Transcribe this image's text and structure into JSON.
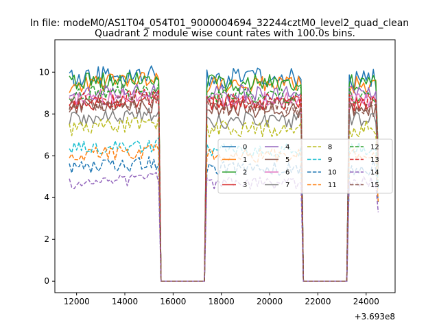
{
  "chart_data": {
    "type": "line",
    "suptitle": "In file: modeM0/AS1T04_054T01_9000004694_32244cztM0_level2_quad_clean",
    "title": "Quadrant 2 module wise count rates with 100.0s bins.",
    "xlabel": "",
    "ylabel": "",
    "x_offset_label": "+3.693e8",
    "xlim": [
      11100,
      25200
    ],
    "ylim": [
      -0.55,
      11.55
    ],
    "x_ticks": [
      12000,
      14000,
      16000,
      18000,
      20000,
      22000,
      24000
    ],
    "x_tick_labels": [
      "12000",
      "14000",
      "16000",
      "18000",
      "20000",
      "22000",
      "24000"
    ],
    "y_ticks": [
      0,
      2,
      4,
      6,
      8,
      10
    ],
    "y_tick_labels": [
      "0",
      "2",
      "4",
      "6",
      "8",
      "10"
    ],
    "grid": false,
    "legend_position": "center-right",
    "bin_seconds": 100,
    "segments": [
      {
        "start": 11700,
        "end": 15400
      },
      {
        "start": 17400,
        "end": 21300
      },
      {
        "start": 23300,
        "end": 24500
      }
    ],
    "gap_value": 0,
    "series": [
      {
        "name": "0",
        "color": "#1f77b4",
        "dash": "solid",
        "level": 9.7,
        "noise": 0.5
      },
      {
        "name": "1",
        "color": "#ff7f0e",
        "dash": "solid",
        "level": 9.4,
        "noise": 0.4
      },
      {
        "name": "2",
        "color": "#2ca02c",
        "dash": "solid",
        "level": 9.5,
        "noise": 0.4
      },
      {
        "name": "3",
        "color": "#d62728",
        "dash": "solid",
        "level": 8.5,
        "noise": 0.4
      },
      {
        "name": "4",
        "color": "#9467bd",
        "dash": "solid",
        "level": 9.0,
        "noise": 0.4
      },
      {
        "name": "5",
        "color": "#8c564b",
        "dash": "solid",
        "level": 8.2,
        "noise": 0.4
      },
      {
        "name": "6",
        "color": "#e377c2",
        "dash": "solid",
        "level": 8.7,
        "noise": 0.4
      },
      {
        "name": "7",
        "color": "#7f7f7f",
        "dash": "solid",
        "level": 7.7,
        "noise": 0.4
      },
      {
        "name": "8",
        "color": "#bcbd22",
        "dash": "dashed",
        "level": 7.3,
        "noise": 0.4
      },
      {
        "name": "9",
        "color": "#17becf",
        "dash": "dashed",
        "level": 6.3,
        "noise": 0.35
      },
      {
        "name": "10",
        "color": "#1f77b4",
        "dash": "dashed",
        "level": 5.4,
        "noise": 0.35
      },
      {
        "name": "11",
        "color": "#ff7f0e",
        "dash": "dashed",
        "level": 6.0,
        "noise": 0.35
      },
      {
        "name": "12",
        "color": "#2ca02c",
        "dash": "dashed",
        "level": 8.9,
        "noise": 0.4
      },
      {
        "name": "13",
        "color": "#d62728",
        "dash": "dashed",
        "level": 8.6,
        "noise": 0.4
      },
      {
        "name": "14",
        "color": "#9467bd",
        "dash": "dashed",
        "level": 4.7,
        "noise": 0.3
      },
      {
        "name": "15",
        "color": "#8c564b",
        "dash": "dashed",
        "level": 8.4,
        "noise": 0.4
      }
    ]
  }
}
